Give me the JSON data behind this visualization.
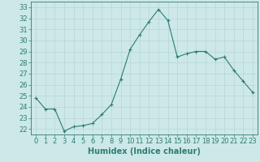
{
  "x": [
    0,
    1,
    2,
    3,
    4,
    5,
    6,
    7,
    8,
    9,
    10,
    11,
    12,
    13,
    14,
    15,
    16,
    17,
    18,
    19,
    20,
    21,
    22,
    23
  ],
  "y": [
    24.8,
    23.8,
    23.8,
    21.8,
    22.2,
    22.3,
    22.5,
    23.3,
    24.2,
    26.5,
    29.2,
    30.5,
    31.7,
    32.8,
    31.8,
    28.5,
    28.8,
    29.0,
    29.0,
    28.3,
    28.5,
    27.3,
    26.3,
    25.3
  ],
  "line_color": "#2e7d6e",
  "marker": "+",
  "bg_color": "#cce8e8",
  "grid_color": "#b8d4d4",
  "xlabel": "Humidex (Indice chaleur)",
  "ylim": [
    21.5,
    33.5
  ],
  "xlim": [
    -0.5,
    23.5
  ],
  "yticks": [
    22,
    23,
    24,
    25,
    26,
    27,
    28,
    29,
    30,
    31,
    32,
    33
  ],
  "xticks": [
    0,
    1,
    2,
    3,
    4,
    5,
    6,
    7,
    8,
    9,
    10,
    11,
    12,
    13,
    14,
    15,
    16,
    17,
    18,
    19,
    20,
    21,
    22,
    23
  ],
  "tick_color": "#2e7d6e",
  "axis_color": "#2e7d6e",
  "label_fontsize": 6,
  "xlabel_fontsize": 7
}
